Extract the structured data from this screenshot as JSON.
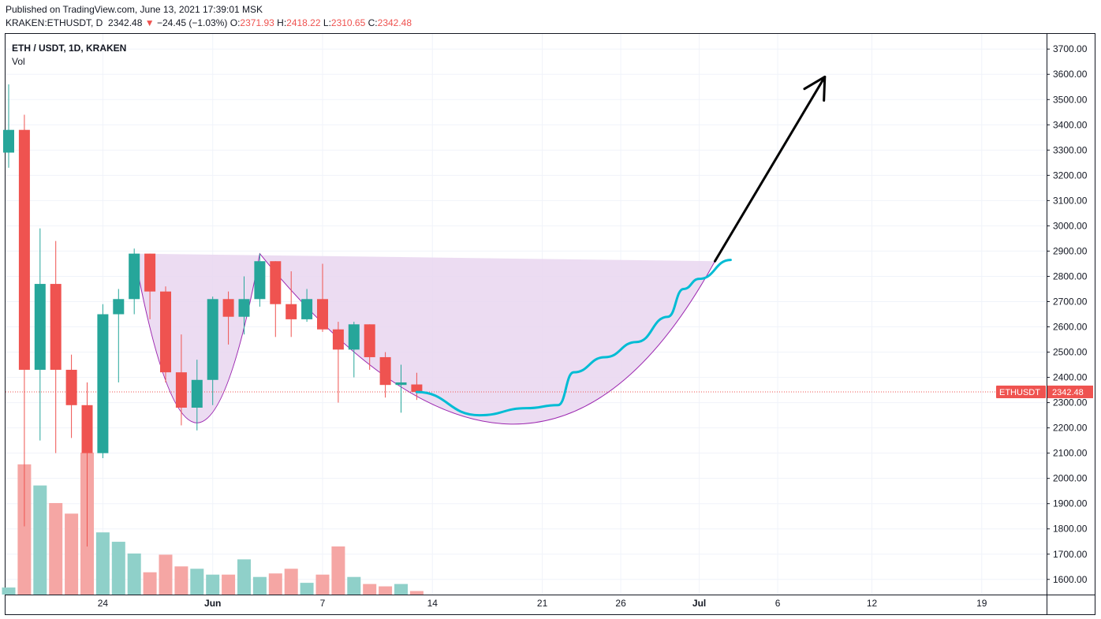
{
  "header": {
    "published": "Published on TradingView.com, June 13, 2021 17:39:01 MSK",
    "symbol": "KRAKEN:ETHUSDT, D",
    "price": "2342.48",
    "arrow": "▼",
    "change": "−24.45 (−1.03%)",
    "o_label": "O:",
    "o": "2371.93",
    "h_label": "H:",
    "h": "2418.22",
    "l_label": "L:",
    "l": "2310.65",
    "c_label": "C:",
    "c": "2342.48"
  },
  "legend": {
    "title": "ETH / USDT, 1D, KRAKEN",
    "volume": "Vol"
  },
  "colors": {
    "up": "#26a69a",
    "down": "#ef5350",
    "up_vol": "#8fd0c9",
    "down_vol": "#f5a6a4",
    "cup_fill": "#e9d6f0",
    "cup_line": "#9c27b0",
    "projection": "#00bcd4",
    "arrow": "#000000"
  },
  "chart_data": {
    "type": "candlestick",
    "symbol": "ETHUSDT",
    "interval": "1D",
    "y_axis": {
      "ylim": [
        1540,
        3760
      ],
      "ticks": [
        1600,
        1700,
        1800,
        1900,
        2000,
        2100,
        2200,
        2300,
        2400,
        2500,
        2600,
        2700,
        2800,
        2900,
        3000,
        3100,
        3200,
        3300,
        3400,
        3500,
        3600,
        3700
      ],
      "tick_labels": [
        "1600.00",
        "1700.00",
        "1800.00",
        "1900.00",
        "2000.00",
        "2100.00",
        "2200.00",
        "2300.00",
        "2400.00",
        "2500.00",
        "2600.00",
        "2700.00",
        "2800.00",
        "2900.00",
        "3000.00",
        "3100.00",
        "3200.00",
        "3300.00",
        "3400.00",
        "3500.00",
        "3600.00",
        "3700.00"
      ]
    },
    "x_axis": {
      "start": "2021-05-18",
      "end": "2021-07-24",
      "tick_labels": [
        {
          "date": "2021-05-24",
          "label": "24"
        },
        {
          "date": "2021-05-31",
          "label": "Jun"
        },
        {
          "date": "2021-06-07",
          "label": "7"
        },
        {
          "date": "2021-06-14",
          "label": "14"
        },
        {
          "date": "2021-06-21",
          "label": "21"
        },
        {
          "date": "2021-06-26",
          "label": "26"
        },
        {
          "date": "2021-07-01",
          "label": "Jul"
        },
        {
          "date": "2021-07-06",
          "label": "6"
        },
        {
          "date": "2021-07-12",
          "label": "12"
        },
        {
          "date": "2021-07-19",
          "label": "19"
        }
      ]
    },
    "last_price": {
      "label": "ETHUSDT",
      "value": "2342.48"
    },
    "candles": [
      {
        "date": "2021-05-18",
        "o": 3290,
        "h": 3560,
        "l": 3230,
        "c": 3380,
        "v": 60
      },
      {
        "date": "2021-05-19",
        "o": 3380,
        "h": 3440,
        "l": 1810,
        "c": 2430,
        "v": 1110
      },
      {
        "date": "2021-05-20",
        "o": 2430,
        "h": 2990,
        "l": 2150,
        "c": 2770,
        "v": 930
      },
      {
        "date": "2021-05-21",
        "o": 2770,
        "h": 2940,
        "l": 2100,
        "c": 2430,
        "v": 780
      },
      {
        "date": "2021-05-22",
        "o": 2430,
        "h": 2490,
        "l": 2160,
        "c": 2290,
        "v": 690
      },
      {
        "date": "2021-05-23",
        "o": 2290,
        "h": 2380,
        "l": 1730,
        "c": 2100,
        "v": 1210
      },
      {
        "date": "2021-05-24",
        "o": 2100,
        "h": 2690,
        "l": 2080,
        "c": 2650,
        "v": 530
      },
      {
        "date": "2021-05-25",
        "o": 2650,
        "h": 2750,
        "l": 2380,
        "c": 2710,
        "v": 450
      },
      {
        "date": "2021-05-26",
        "o": 2710,
        "h": 2910,
        "l": 2650,
        "c": 2890,
        "v": 350
      },
      {
        "date": "2021-05-27",
        "o": 2890,
        "h": 2890,
        "l": 2630,
        "c": 2740,
        "v": 190
      },
      {
        "date": "2021-05-28",
        "o": 2740,
        "h": 2760,
        "l": 2380,
        "c": 2420,
        "v": 340
      },
      {
        "date": "2021-05-29",
        "o": 2420,
        "h": 2570,
        "l": 2210,
        "c": 2280,
        "v": 240
      },
      {
        "date": "2021-05-30",
        "o": 2280,
        "h": 2470,
        "l": 2190,
        "c": 2390,
        "v": 220
      },
      {
        "date": "2021-05-31",
        "o": 2390,
        "h": 2720,
        "l": 2290,
        "c": 2710,
        "v": 170
      },
      {
        "date": "2021-06-01",
        "o": 2710,
        "h": 2740,
        "l": 2530,
        "c": 2640,
        "v": 170
      },
      {
        "date": "2021-06-02",
        "o": 2640,
        "h": 2800,
        "l": 2570,
        "c": 2710,
        "v": 300
      },
      {
        "date": "2021-06-03",
        "o": 2710,
        "h": 2890,
        "l": 2680,
        "c": 2860,
        "v": 150
      },
      {
        "date": "2021-06-04",
        "o": 2860,
        "h": 2860,
        "l": 2560,
        "c": 2690,
        "v": 180
      },
      {
        "date": "2021-06-05",
        "o": 2690,
        "h": 2820,
        "l": 2560,
        "c": 2630,
        "v": 220
      },
      {
        "date": "2021-06-06",
        "o": 2630,
        "h": 2750,
        "l": 2620,
        "c": 2710,
        "v": 100
      },
      {
        "date": "2021-06-07",
        "o": 2710,
        "h": 2850,
        "l": 2580,
        "c": 2590,
        "v": 170
      },
      {
        "date": "2021-06-08",
        "o": 2590,
        "h": 2620,
        "l": 2300,
        "c": 2510,
        "v": 410
      },
      {
        "date": "2021-06-09",
        "o": 2510,
        "h": 2620,
        "l": 2400,
        "c": 2610,
        "v": 150
      },
      {
        "date": "2021-06-10",
        "o": 2610,
        "h": 2610,
        "l": 2430,
        "c": 2480,
        "v": 90
      },
      {
        "date": "2021-06-11",
        "o": 2480,
        "h": 2500,
        "l": 2320,
        "c": 2370,
        "v": 70
      },
      {
        "date": "2021-06-12",
        "o": 2370,
        "h": 2450,
        "l": 2260,
        "c": 2380,
        "v": 90
      },
      {
        "date": "2021-06-13",
        "o": 2371.93,
        "h": 2418.22,
        "l": 2310.65,
        "c": 2342.48,
        "v": 30
      }
    ],
    "annotations": {
      "cup": [
        {
          "date": "2021-05-26",
          "price": 2890
        },
        {
          "date": "2021-05-30",
          "price": 2220
        },
        {
          "date": "2021-06-03",
          "price": 2890
        },
        {
          "date": "2021-06-19",
          "price": 2215
        },
        {
          "date": "2021-07-02",
          "price": 2860
        }
      ],
      "projection": [
        {
          "date": "2021-06-13",
          "price": 2342
        },
        {
          "date": "2021-06-17",
          "price": 2250
        },
        {
          "date": "2021-06-20",
          "price": 2278
        },
        {
          "date": "2021-06-22",
          "price": 2290
        },
        {
          "date": "2021-06-23",
          "price": 2420
        },
        {
          "date": "2021-06-25",
          "price": 2480
        },
        {
          "date": "2021-06-27",
          "price": 2540
        },
        {
          "date": "2021-06-29",
          "price": 2640
        },
        {
          "date": "2021-06-30",
          "price": 2750
        },
        {
          "date": "2021-07-01",
          "price": 2790
        },
        {
          "date": "2021-07-03",
          "price": 2865
        }
      ],
      "arrow": [
        {
          "date": "2021-07-02",
          "price": 2860
        },
        {
          "date": "2021-07-09",
          "price": 3590
        }
      ]
    }
  }
}
